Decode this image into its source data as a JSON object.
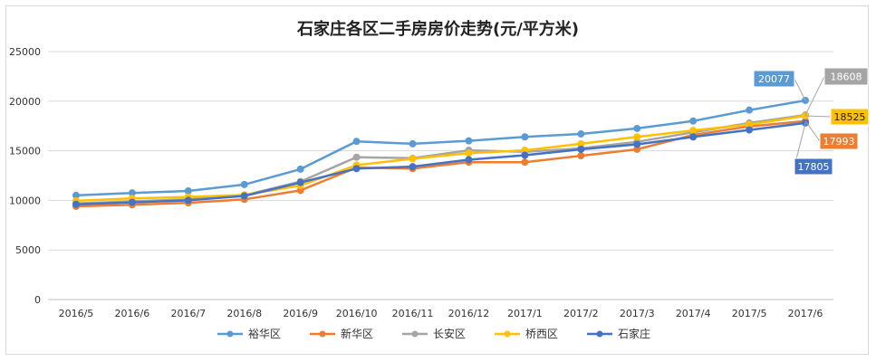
{
  "chart_data": {
    "type": "line",
    "title": "石家庄各区二手房房价走势(元/平方米)",
    "xlabel": "",
    "ylabel": "",
    "ylim": [
      0,
      25000
    ],
    "yticks": [
      0,
      5000,
      10000,
      15000,
      20000,
      25000
    ],
    "grid": true,
    "legend_position": "bottom",
    "categories": [
      "2016/5",
      "2016/6",
      "2016/7",
      "2016/8",
      "2016/9",
      "2016/10",
      "2016/11",
      "2016/12",
      "2017/1",
      "2017/2",
      "2017/3",
      "2017/4",
      "2017/5",
      "2017/6"
    ],
    "series": [
      {
        "name": "裕华区",
        "color": "#5b9bd5",
        "values": [
          10500,
          10750,
          10950,
          11600,
          13150,
          15950,
          15700,
          16000,
          16400,
          16700,
          17250,
          18000,
          19100,
          20077
        ]
      },
      {
        "name": "新华区",
        "color": "#ed7d31",
        "values": [
          9400,
          9550,
          9750,
          10100,
          11000,
          13300,
          13200,
          13850,
          13850,
          14500,
          15150,
          16600,
          17450,
          17993
        ]
      },
      {
        "name": "长安区",
        "color": "#a5a5a5",
        "values": [
          9700,
          9900,
          10100,
          10500,
          11900,
          14350,
          14250,
          15050,
          14900,
          15250,
          15900,
          16850,
          17800,
          18608
        ]
      },
      {
        "name": "桥西区",
        "color": "#ffc000",
        "values": [
          9950,
          10200,
          10350,
          10550,
          11500,
          13550,
          14200,
          14750,
          15050,
          15700,
          16400,
          17050,
          17650,
          18525
        ]
      },
      {
        "name": "石家庄",
        "color": "#4472c4",
        "values": [
          9600,
          9800,
          10000,
          10450,
          11800,
          13200,
          13400,
          14100,
          14550,
          15150,
          15650,
          16400,
          17100,
          17805
        ]
      }
    ],
    "data_labels": [
      {
        "series": "裕华区",
        "text": "20077"
      },
      {
        "series": "长安区",
        "text": "18608"
      },
      {
        "series": "桥西区",
        "text": "18525"
      },
      {
        "series": "新华区",
        "text": "17993"
      },
      {
        "series": "石家庄",
        "text": "17805"
      }
    ]
  }
}
